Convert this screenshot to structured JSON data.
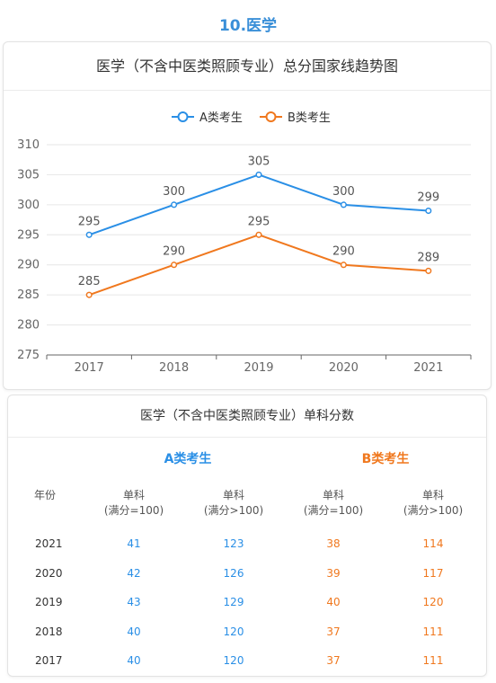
{
  "page_title": "10.医学",
  "chart": {
    "title": "医学（不含中医类照顾专业）总分国家线趋势图"
  },
  "chart_data": {
    "type": "line",
    "categories": [
      "2017",
      "2018",
      "2019",
      "2020",
      "2021"
    ],
    "series": [
      {
        "name": "A类考生",
        "values": [
          295,
          300,
          305,
          300,
          299
        ],
        "color": "#2a8fe6"
      },
      {
        "name": "B类考生",
        "values": [
          285,
          290,
          295,
          290,
          289
        ],
        "color": "#f0781e"
      }
    ],
    "ylim": [
      275,
      310
    ],
    "yticks": [
      "275",
      "280",
      "285",
      "290",
      "295",
      "300",
      "305",
      "310"
    ],
    "grid": true,
    "legend": "top-center"
  },
  "table": {
    "title": "医学（不含中医类照顾专业）单科分数",
    "group_a": "A类考生",
    "group_b": "B类考生",
    "col_year": "年份",
    "col_sub1_line1": "单科",
    "col_sub1_line2": "(满分=100)",
    "col_sub2_line1": "单科",
    "col_sub2_line2": "(满分>100)",
    "rows": [
      {
        "year": "2021",
        "a1": "41",
        "a2": "123",
        "b1": "38",
        "b2": "114"
      },
      {
        "year": "2020",
        "a1": "42",
        "a2": "126",
        "b1": "39",
        "b2": "117"
      },
      {
        "year": "2019",
        "a1": "43",
        "a2": "129",
        "b1": "40",
        "b2": "120"
      },
      {
        "year": "2018",
        "a1": "40",
        "a2": "120",
        "b1": "37",
        "b2": "111"
      },
      {
        "year": "2017",
        "a1": "40",
        "a2": "120",
        "b1": "37",
        "b2": "111"
      }
    ]
  }
}
